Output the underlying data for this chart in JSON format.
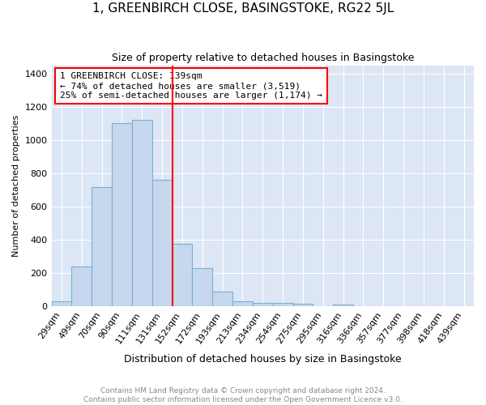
{
  "title": "1, GREENBIRCH CLOSE, BASINGSTOKE, RG22 5JL",
  "subtitle": "Size of property relative to detached houses in Basingstoke",
  "xlabel": "Distribution of detached houses by size in Basingstoke",
  "ylabel": "Number of detached properties",
  "footer": "Contains HM Land Registry data © Crown copyright and database right 2024.\nContains public sector information licensed under the Open Government Licence v3.0.",
  "bar_labels": [
    "29sqm",
    "49sqm",
    "70sqm",
    "90sqm",
    "111sqm",
    "131sqm",
    "152sqm",
    "172sqm",
    "193sqm",
    "213sqm",
    "234sqm",
    "254sqm",
    "275sqm",
    "295sqm",
    "316sqm",
    "336sqm",
    "357sqm",
    "377sqm",
    "398sqm",
    "418sqm",
    "439sqm"
  ],
  "bar_values": [
    30,
    240,
    720,
    1100,
    1120,
    760,
    375,
    230,
    92,
    30,
    22,
    20,
    15,
    0,
    10,
    0,
    0,
    0,
    0,
    0,
    0
  ],
  "bar_color": "#c5d8ee",
  "bar_edge_color": "#7bafd4",
  "background_color": "#dce6f5",
  "vline_x": 5.5,
  "vline_color": "red",
  "annotation_text": "1 GREENBIRCH CLOSE: 139sqm\n← 74% of detached houses are smaller (3,519)\n25% of semi-detached houses are larger (1,174) →",
  "annotation_box_color": "white",
  "annotation_box_edge": "red",
  "ylim": [
    0,
    1450
  ],
  "yticks": [
    0,
    200,
    400,
    600,
    800,
    1000,
    1200,
    1400
  ],
  "title_fontsize": 11,
  "subtitle_fontsize": 9,
  "ylabel_fontsize": 8,
  "xlabel_fontsize": 9,
  "tick_fontsize": 8,
  "annot_fontsize": 8,
  "footer_fontsize": 6.5
}
